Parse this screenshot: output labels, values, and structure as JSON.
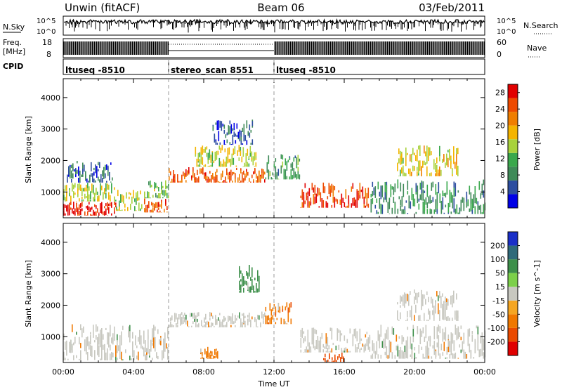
{
  "header": {
    "station": "Unwin (fitACF)",
    "beam": "Beam 06",
    "date": "03/Feb/2011"
  },
  "noise_panel": {
    "left_label": "N.Sky",
    "right_label": "N.Search",
    "tick_top": "10^5",
    "tick_bottom": "10^0"
  },
  "freq_panel": {
    "left_label_1": "Freq.",
    "left_label_2": "[MHz]",
    "right_label": "Nave",
    "left_ticks": [
      "18",
      "8"
    ],
    "right_ticks": [
      "60",
      "0"
    ]
  },
  "cpid_panel": {
    "label": "CPID",
    "segments": [
      {
        "label": "ltuseq -8510",
        "start_hour": 0,
        "end_hour": 6
      },
      {
        "label": "stereo_scan 8551",
        "start_hour": 6,
        "end_hour": 12
      },
      {
        "label": "ltuseq -8510",
        "start_hour": 12,
        "end_hour": 24
      }
    ]
  },
  "colors": {
    "velocity_gray": "#c8c8c0",
    "power_scale": [
      "#0000e6",
      "#2d4ea0",
      "#3f8a58",
      "#3aa84c",
      "#a8d23c",
      "#f4b400",
      "#f07e00",
      "#ee4a00",
      "#e10000"
    ],
    "velocity_scale": [
      "#1a2fc8",
      "#2f6a7a",
      "#3d8f4a",
      "#7cd04a",
      "#c8c8c0",
      "#f5a623",
      "#f07800",
      "#ea4a00",
      "#e00000"
    ]
  },
  "chart_data": [
    {
      "type": "heatmap",
      "panel": "power",
      "xlabel": "",
      "ylabel": "Slant Range [km]",
      "x_unit": "hours UT",
      "xlim": [
        0,
        24
      ],
      "ylim": [
        180,
        4600
      ],
      "y_ticks": [
        "1000",
        "2000",
        "3000",
        "4000"
      ],
      "colorbar": {
        "label": "Power [dB]",
        "tick_labels": [
          "4",
          "8",
          "12",
          "16",
          "20",
          "24",
          "28"
        ],
        "range": [
          0,
          30
        ]
      },
      "regions": [
        {
          "x0": 0.0,
          "x1": 3.0,
          "y0": 250,
          "y1": 700,
          "value": 27
        },
        {
          "x0": 0.0,
          "x1": 3.0,
          "y0": 700,
          "y1": 1300,
          "value": 15
        },
        {
          "x0": 0.2,
          "x1": 2.8,
          "y0": 1300,
          "y1": 2000,
          "value": 6
        },
        {
          "x0": 3.0,
          "x1": 4.5,
          "y0": 400,
          "y1": 1100,
          "value": 16
        },
        {
          "x0": 4.6,
          "x1": 6.0,
          "y0": 350,
          "y1": 800,
          "value": 24
        },
        {
          "x0": 4.6,
          "x1": 6.0,
          "y0": 800,
          "y1": 1400,
          "value": 13
        },
        {
          "x0": 6.0,
          "x1": 11.5,
          "y0": 1300,
          "y1": 1800,
          "value": 24
        },
        {
          "x0": 7.5,
          "x1": 11.0,
          "y0": 1800,
          "y1": 2500,
          "value": 16
        },
        {
          "x0": 8.5,
          "x1": 10.8,
          "y0": 2500,
          "y1": 3300,
          "value": 6
        },
        {
          "x0": 11.5,
          "x1": 13.5,
          "y0": 1400,
          "y1": 2200,
          "value": 10
        },
        {
          "x0": 13.5,
          "x1": 17.5,
          "y0": 500,
          "y1": 1300,
          "value": 26
        },
        {
          "x0": 17.5,
          "x1": 24.0,
          "y0": 300,
          "y1": 1400,
          "value": 9
        },
        {
          "x0": 19.0,
          "x1": 22.5,
          "y0": 1500,
          "y1": 2500,
          "value": 17
        }
      ]
    },
    {
      "type": "heatmap",
      "panel": "velocity",
      "xlabel": "Time UT",
      "ylabel": "Slant Range [km]",
      "x_unit": "hours UT",
      "xlim": [
        0,
        24
      ],
      "ylim": [
        180,
        4600
      ],
      "y_ticks": [
        "1000",
        "2000",
        "3000",
        "4000"
      ],
      "x_ticks": [
        "00:00",
        "04:00",
        "08:00",
        "12:00",
        "16:00",
        "20:00",
        "00:00"
      ],
      "colorbar": {
        "label": "Velocity [m s^-1]",
        "tick_labels": [
          "200",
          "100",
          "50",
          "15",
          "-15",
          "-50",
          "-100",
          "-200"
        ]
      },
      "regions": [
        {
          "x0": 0.0,
          "x1": 6.0,
          "y0": 250,
          "y1": 1400,
          "value": 0
        },
        {
          "x0": 6.0,
          "x1": 11.5,
          "y0": 1300,
          "y1": 1800,
          "value": 0
        },
        {
          "x0": 7.8,
          "x1": 8.8,
          "y0": 300,
          "y1": 700,
          "value": -80
        },
        {
          "x0": 10.0,
          "x1": 11.2,
          "y0": 2400,
          "y1": 3300,
          "value": 60
        },
        {
          "x0": 11.5,
          "x1": 13.0,
          "y0": 1400,
          "y1": 2100,
          "value": -60
        },
        {
          "x0": 13.5,
          "x1": 17.5,
          "y0": 500,
          "y1": 1300,
          "value": 0
        },
        {
          "x0": 14.8,
          "x1": 16.0,
          "y0": 200,
          "y1": 500,
          "value": -120
        },
        {
          "x0": 17.5,
          "x1": 24.0,
          "y0": 300,
          "y1": 1400,
          "value": 0
        },
        {
          "x0": 19.0,
          "x1": 22.5,
          "y0": 1500,
          "y1": 2500,
          "value": 0
        }
      ]
    }
  ]
}
